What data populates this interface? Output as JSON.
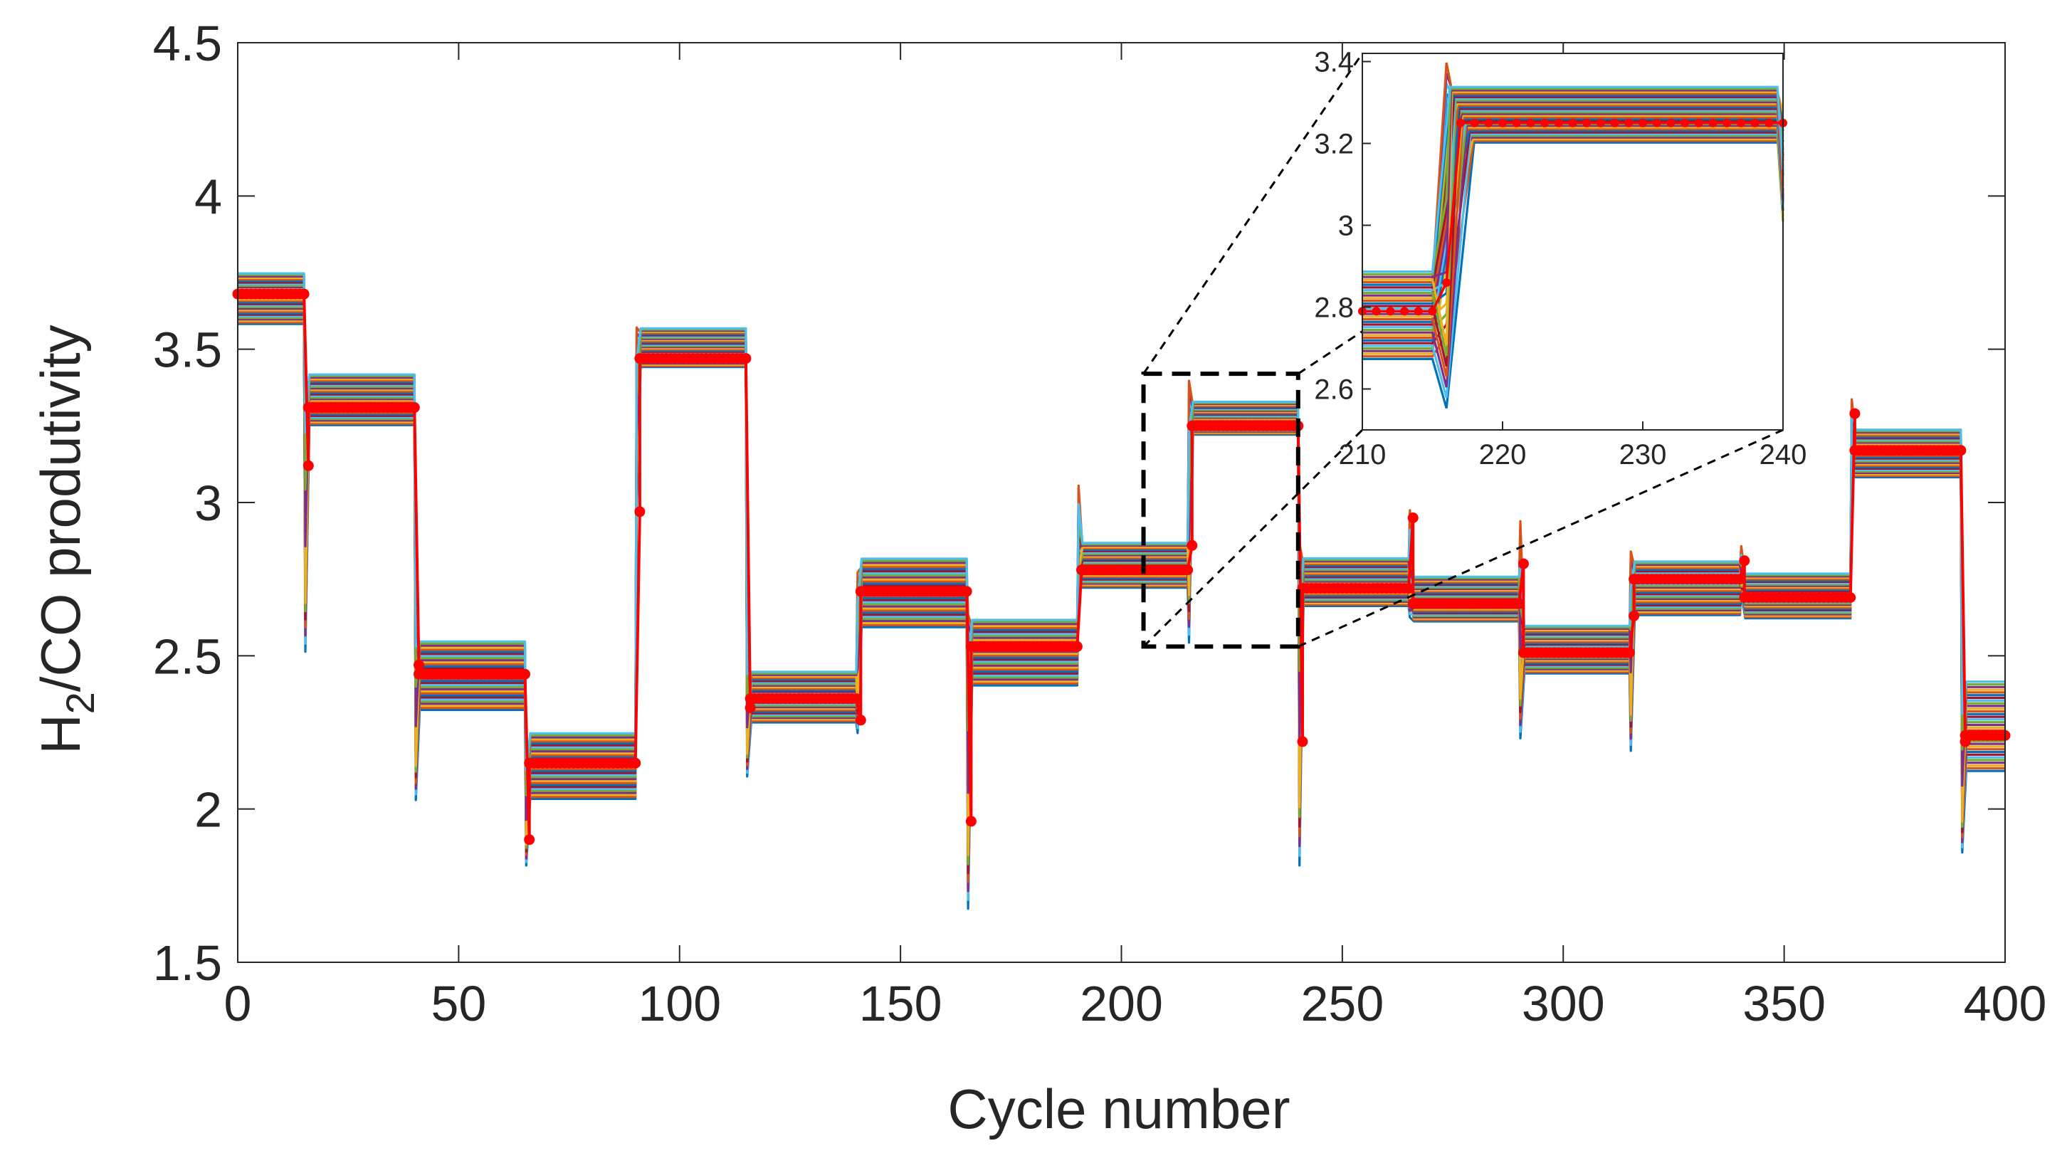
{
  "chart_data": {
    "type": "line",
    "title": "",
    "xlabel": "Cycle number",
    "ylabel": {
      "main": "H",
      "subscript": "2",
      "rest": "/CO produtivity"
    },
    "xlim": [
      0,
      400
    ],
    "ylim": [
      1.5,
      4.5
    ],
    "xticks": [
      "0",
      "50",
      "100",
      "150",
      "200",
      "250",
      "300",
      "350",
      "400"
    ],
    "yticks": [
      "1.5",
      "2",
      "2.5",
      "3",
      "3.5",
      "4",
      "4.5"
    ],
    "grid": false,
    "series_note": "ensemble of many colored simulation trajectories with red dotted mean trajectory",
    "levels": [
      {
        "start": 0,
        "end": 15,
        "mean": 3.68,
        "min": 3.58,
        "max": 3.75
      },
      {
        "start": 15,
        "end": 40,
        "mean": 3.31,
        "min": 3.25,
        "max": 3.42
      },
      {
        "start": 40,
        "end": 65,
        "mean": 2.44,
        "min": 2.32,
        "max": 2.55
      },
      {
        "start": 65,
        "end": 90,
        "mean": 2.15,
        "min": 2.03,
        "max": 2.25
      },
      {
        "start": 90,
        "end": 115,
        "mean": 3.47,
        "min": 3.44,
        "max": 3.57
      },
      {
        "start": 115,
        "end": 140,
        "mean": 2.36,
        "min": 2.28,
        "max": 2.45
      },
      {
        "start": 140,
        "end": 165,
        "mean": 2.71,
        "min": 2.59,
        "max": 2.82
      },
      {
        "start": 165,
        "end": 190,
        "mean": 2.53,
        "min": 2.4,
        "max": 2.62
      },
      {
        "start": 190,
        "end": 215,
        "mean": 2.78,
        "min": 2.72,
        "max": 2.87
      },
      {
        "start": 215,
        "end": 240,
        "mean": 3.25,
        "min": 3.22,
        "max": 3.33
      },
      {
        "start": 240,
        "end": 265,
        "mean": 2.72,
        "min": 2.66,
        "max": 2.82
      },
      {
        "start": 265,
        "end": 290,
        "mean": 2.67,
        "min": 2.61,
        "max": 2.76
      },
      {
        "start": 290,
        "end": 315,
        "mean": 2.51,
        "min": 2.44,
        "max": 2.6
      },
      {
        "start": 315,
        "end": 340,
        "mean": 2.75,
        "min": 2.63,
        "max": 2.81
      },
      {
        "start": 340,
        "end": 365,
        "mean": 2.69,
        "min": 2.62,
        "max": 2.77
      },
      {
        "start": 365,
        "end": 390,
        "mean": 3.17,
        "min": 3.08,
        "max": 3.24
      },
      {
        "start": 390,
        "end": 400,
        "mean": 2.24,
        "min": 2.12,
        "max": 2.42
      }
    ],
    "transitions": [
      {
        "x": 16,
        "mean": 3.12,
        "low": 2.5,
        "high": 3.4
      },
      {
        "x": 41,
        "mean": 2.47,
        "low": 2.02,
        "high": 2.65
      },
      {
        "x": 66,
        "mean": 1.9,
        "low": 1.81,
        "high": 2.2
      },
      {
        "x": 91,
        "mean": 2.97,
        "low": 2.97,
        "high": 3.58
      },
      {
        "x": 116,
        "mean": 2.33,
        "low": 2.1,
        "high": 2.52
      },
      {
        "x": 141,
        "mean": 2.29,
        "low": 2.24,
        "high": 2.78
      },
      {
        "x": 166,
        "mean": 1.96,
        "low": 1.66,
        "high": 2.65
      },
      {
        "x": 191,
        "mean": 2.78,
        "low": 2.72,
        "high": 3.06
      },
      {
        "x": 216,
        "mean": 2.86,
        "low": 2.53,
        "high": 3.41
      },
      {
        "x": 241,
        "mean": 2.22,
        "low": 1.8,
        "high": 2.88
      },
      {
        "x": 266,
        "mean": 2.95,
        "low": 2.62,
        "high": 2.98
      },
      {
        "x": 291,
        "mean": 2.8,
        "low": 2.22,
        "high": 2.95
      },
      {
        "x": 316,
        "mean": 2.63,
        "low": 2.18,
        "high": 2.85
      },
      {
        "x": 341,
        "mean": 2.81,
        "low": 2.7,
        "high": 2.86
      },
      {
        "x": 366,
        "mean": 3.29,
        "low": 3.1,
        "high": 3.34
      },
      {
        "x": 391,
        "mean": 2.22,
        "low": 1.85,
        "high": 2.42
      }
    ],
    "zoom_box": {
      "x": [
        205,
        240
      ],
      "y": [
        2.53,
        3.42
      ]
    },
    "inset": {
      "xlim": [
        210,
        240
      ],
      "ylim": [
        2.5,
        3.42
      ],
      "xticks": [
        "210",
        "220",
        "230",
        "240"
      ],
      "yticks": [
        "2.6",
        "2.8",
        "3",
        "3.2",
        "3.4"
      ],
      "before": {
        "mean": 2.79,
        "min": 2.67,
        "max": 2.89
      },
      "after": {
        "mean": 3.25,
        "min": 3.2,
        "max": 3.34
      },
      "spike": {
        "x": 216,
        "mean": 2.86,
        "low": 2.54,
        "high": 3.41
      }
    },
    "colors": {
      "mean": "#ff0000",
      "ensemble": [
        "#0072bd",
        "#d95319",
        "#edb120",
        "#7e2f8e",
        "#77ac30",
        "#4dbeee",
        "#a2142f"
      ],
      "axis": "#262626",
      "zoom": "#000000"
    }
  }
}
